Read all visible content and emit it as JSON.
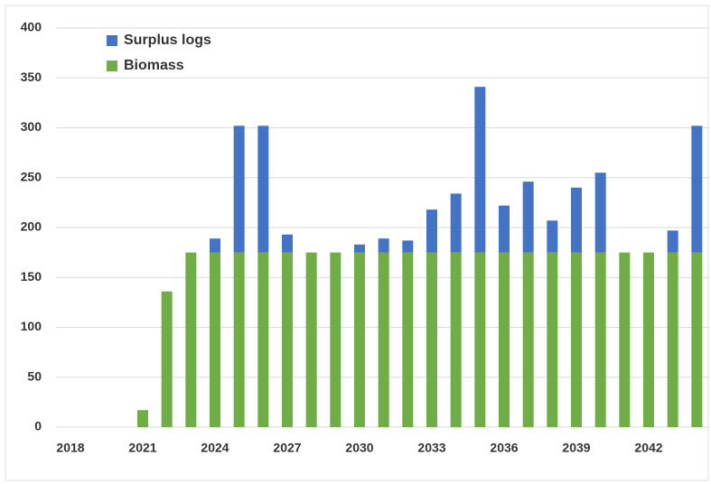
{
  "chart_data": {
    "type": "stacked-bar",
    "categories": [
      "2018",
      null,
      null,
      "2021",
      null,
      null,
      "2024",
      null,
      null,
      "2027",
      null,
      null,
      "2030",
      null,
      null,
      "2033",
      null,
      null,
      "2036",
      null,
      null,
      "2039",
      null,
      null,
      "2042",
      null,
      null
    ],
    "series": [
      {
        "name": "Biomass",
        "color": "#70ad47",
        "values": [
          0,
          0,
          0,
          17,
          136,
          175,
          175,
          175,
          175,
          175,
          175,
          175,
          175,
          175,
          175,
          175,
          175,
          175,
          175,
          175,
          175,
          175,
          175,
          175,
          175,
          175,
          175
        ]
      },
      {
        "name": "Surplus logs",
        "color": "#4472c4",
        "values": [
          0,
          0,
          0,
          0,
          0,
          0,
          14,
          127,
          127,
          18,
          0,
          0,
          8,
          14,
          12,
          43,
          59,
          166,
          47,
          71,
          32,
          65,
          80,
          0,
          0,
          22,
          127
        ]
      }
    ],
    "ylim": [
      0,
      400
    ],
    "yticks": [
      0,
      50,
      100,
      150,
      200,
      250,
      300,
      350,
      400
    ],
    "grid": true,
    "legend": "top-left"
  }
}
